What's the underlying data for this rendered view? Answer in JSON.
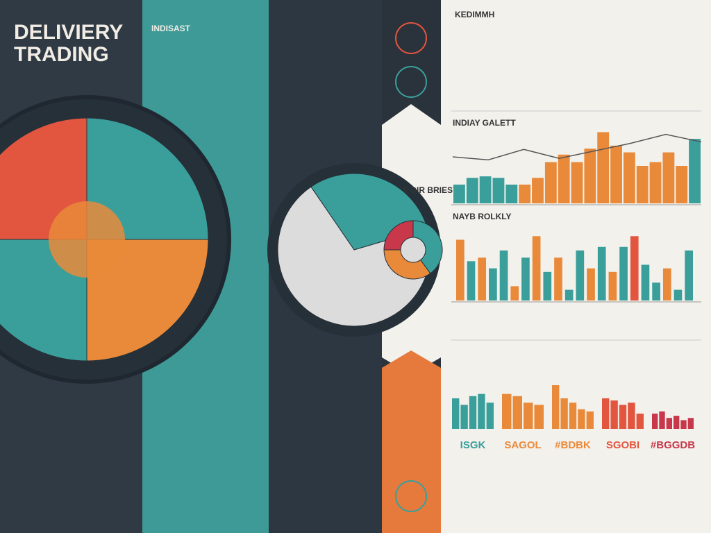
{
  "header": {
    "title_line1": "DELIVIERY",
    "title_line2": "TRADING"
  },
  "panel_titles": {
    "teal": "INDISAST",
    "right_top": "KEDIMMH",
    "center": "VICE DIR BRIESY"
  },
  "big_pie": {
    "values": [
      25,
      25,
      25,
      25
    ],
    "colors": [
      "#3a9f9b",
      "#e98a3a",
      "#3a9f9b",
      "#e2553f"
    ]
  },
  "mid_pie": {
    "values": [
      30,
      70
    ],
    "colors": [
      "#3a9f9b",
      "#dcdcdc"
    ]
  },
  "donut": {
    "values": [
      40,
      35,
      25
    ],
    "colors": [
      "#3a9f9b",
      "#e98a3a",
      "#c8374a"
    ]
  },
  "combo_chart": {
    "title": "INDIAY GALETT",
    "ylim": [
      0,
      100
    ],
    "bars": [
      25,
      34,
      36,
      34,
      25,
      25,
      34,
      55,
      65,
      55,
      73,
      95,
      77,
      68,
      50,
      55,
      68,
      50,
      86
    ],
    "colors": [
      "#3a9f9b",
      "#3a9f9b",
      "#3a9f9b",
      "#3a9f9b",
      "#3a9f9b",
      "#e98a3a",
      "#e98a3a",
      "#e98a3a",
      "#e98a3a",
      "#e98a3a",
      "#e98a3a",
      "#e98a3a",
      "#e98a3a",
      "#e98a3a",
      "#e98a3a",
      "#e98a3a",
      "#e98a3a",
      "#e98a3a",
      "#3a9f9b"
    ],
    "line": [
      62,
      58,
      72,
      60,
      70,
      80,
      92,
      82
    ],
    "line_color": "#555555"
  },
  "bar_chart": {
    "title": "NAYB ROLKLY",
    "ylim": [
      0,
      100
    ],
    "values": [
      85,
      55,
      60,
      45,
      70,
      20,
      60,
      90,
      40,
      60,
      15,
      70,
      45,
      75,
      40,
      75,
      90,
      50,
      25,
      45,
      15,
      70
    ],
    "colors": [
      "#e98a3a",
      "#3a9f9b",
      "#e98a3a",
      "#3a9f9b",
      "#3a9f9b",
      "#e98a3a",
      "#3a9f9b",
      "#e98a3a",
      "#3a9f9b",
      "#e98a3a",
      "#3a9f9b",
      "#3a9f9b",
      "#e98a3a",
      "#3a9f9b",
      "#e98a3a",
      "#3a9f9b",
      "#e2553f",
      "#3a9f9b",
      "#3a9f9b",
      "#e98a3a",
      "#3a9f9b",
      "#3a9f9b"
    ]
  },
  "mini_charts": [
    {
      "label": "ISGK",
      "color": "#3a9f9b",
      "ylim": [
        0,
        100
      ],
      "values": [
        70,
        55,
        75,
        80,
        60
      ]
    },
    {
      "label": "SAGOL",
      "color": "#e98a3a",
      "ylim": [
        0,
        100
      ],
      "values": [
        80,
        75,
        60,
        55
      ]
    },
    {
      "label": "#BDBK",
      "color": "#e98a3a",
      "ylim": [
        0,
        100
      ],
      "values": [
        100,
        70,
        60,
        45,
        40
      ]
    },
    {
      "label": "SGOBI",
      "color": "#e2553f",
      "ylim": [
        0,
        100
      ],
      "values": [
        70,
        65,
        55,
        60,
        35
      ]
    },
    {
      "label": "#BGGDB",
      "color": "#c8374a",
      "ylim": [
        0,
        100
      ],
      "values": [
        35,
        40,
        25,
        30,
        20,
        25
      ]
    }
  ]
}
